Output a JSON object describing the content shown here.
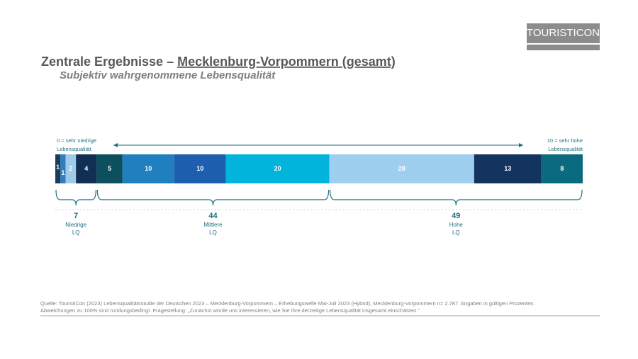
{
  "logo": "TOURISTICON",
  "chart_data": {
    "type": "stacked-bar",
    "title": [
      "Zentrale Ergebnisse – ",
      "Mecklenburg-Vorpommern (gesamt)"
    ],
    "subtitle": "Subjektiv wahrgenommene Lebensqualität",
    "scale_start": [
      "0 = sehr niedrige",
      "Lebensqualität"
    ],
    "scale_end": [
      "10 = sehr hohe",
      "Lebensqualität"
    ],
    "groups": [
      {
        "name": [
          "Niedrige",
          "LQ"
        ],
        "value": 7,
        "values": [
          1,
          1,
          2,
          4
        ],
        "colors": [
          "#173e5e",
          "#2f7fc0",
          "#9fcbe8",
          "#112f52"
        ]
      },
      {
        "name": [
          "Mittlere",
          "LQ"
        ],
        "value": 44,
        "values": [
          5,
          10,
          10,
          20
        ],
        "colors": [
          "#0c4f5e",
          "#1f7fbf",
          "#1d5fae",
          "#00b4dc"
        ]
      },
      {
        "name": [
          "Hohe",
          "LQ"
        ],
        "value": 49,
        "values": [
          28,
          13,
          8
        ],
        "colors": [
          "#9fcfee",
          "#13345e",
          "#0a6a80"
        ]
      }
    ],
    "footnote": [
      "Quelle: TouristiCon (2023) Lebensqualitätsstudie der Deutschen 2023 – Mecklenburg-Vorpommern – Erhebungswelle Mai-Juli 2023 (Hybrid), Mecklenburg-Vorpommern n= 2.787. Angaben in gültigen Prozenten.",
      "Abweichungen zu 100% sind rundungsbedingt. Fragestellung: „Zunächst würde uns interessieren, wie Sie Ihre derzeitige Lebensqualität insgesamt einschätzen.“"
    ]
  }
}
